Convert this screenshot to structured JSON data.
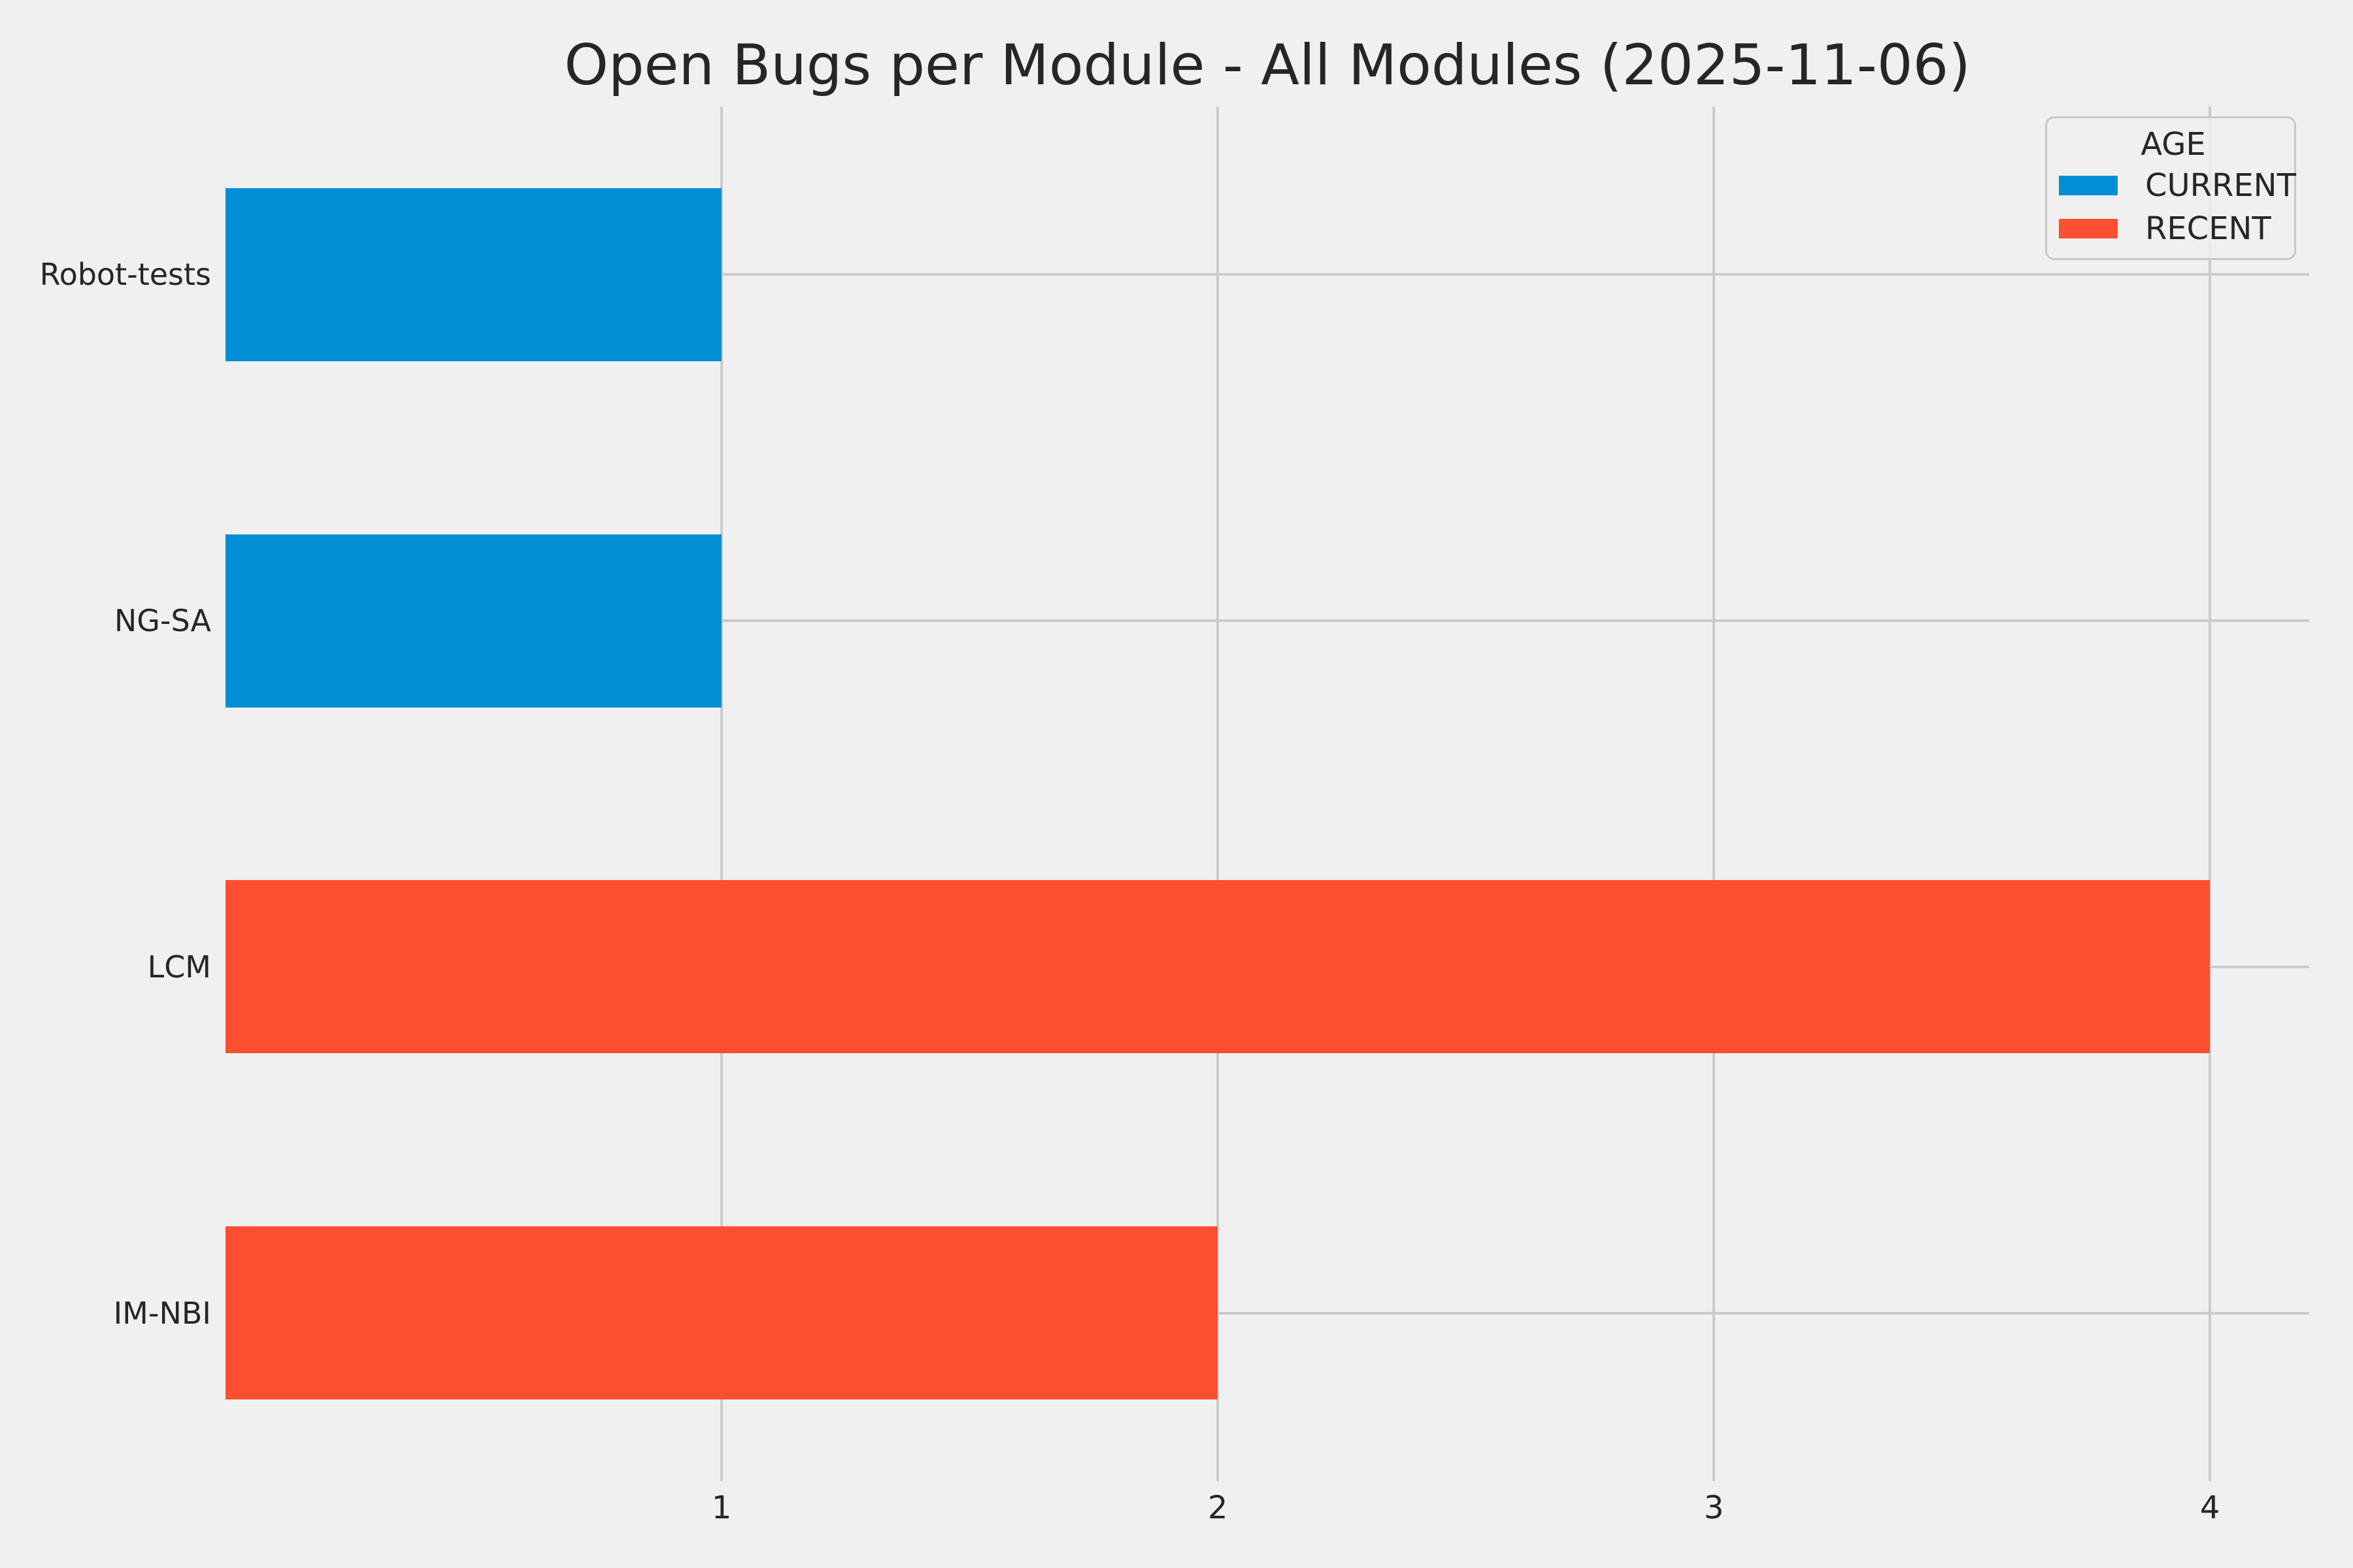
{
  "figure": {
    "background_color": "#f0f0f0",
    "grid_color": "#cbcbcb",
    "text_color": "#262626"
  },
  "legend": {
    "title": "AGE",
    "position": "upper right",
    "entries": [
      {
        "label": "CURRENT",
        "color": "#008fd5"
      },
      {
        "label": "RECENT",
        "color": "#fc4f30"
      }
    ]
  },
  "chart_data": {
    "type": "bar",
    "orientation": "horizontal",
    "title": "Open Bugs per Module - All Modules (2025-11-06)",
    "categories": [
      "Robot-tests",
      "NG-SA",
      "LCM",
      "IM-NBI"
    ],
    "values": [
      1,
      1,
      4,
      2
    ],
    "groups": [
      "CURRENT",
      "CURRENT",
      "RECENT",
      "RECENT"
    ],
    "bar_colors": [
      "#008fd5",
      "#008fd5",
      "#fc4f30",
      "#fc4f30"
    ],
    "xlabel": "",
    "ylabel": "",
    "xlim": [
      0,
      4.2
    ],
    "x_ticks": [
      1,
      2,
      3,
      4
    ],
    "grid": true,
    "legend_position": "upper right"
  }
}
